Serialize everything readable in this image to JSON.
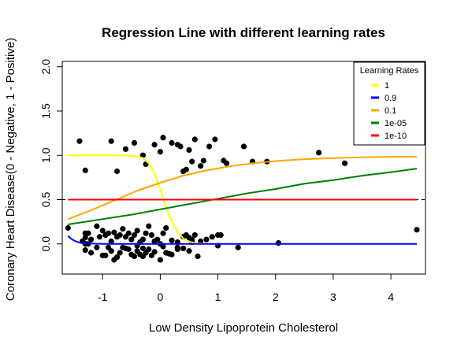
{
  "chart_data": {
    "type": "scatter",
    "title": "Regression Line with different learning rates",
    "xlabel": "Low Density Lipoprotein Cholesterol",
    "ylabel": "Coronary Heart Disease(0 - Negative, 1 - Positive)",
    "xlim": [
      -1.7,
      4.6
    ],
    "ylim": [
      -0.34,
      2.06
    ],
    "xticks": [
      -1,
      0,
      1,
      2,
      3,
      4
    ],
    "yticks": [
      0.0,
      0.5,
      1.0,
      1.5,
      2.0
    ],
    "xtick_labels": [
      "-1",
      "0",
      "1",
      "2",
      "3",
      "4"
    ],
    "ytick_labels": [
      "0.0",
      "0.5",
      "1.0",
      "1.5",
      "2.0"
    ],
    "reference_line": {
      "y": 0.5,
      "style": "dashed",
      "color": "#000000"
    },
    "legend": {
      "title": "Learning Rates",
      "position": "top-right",
      "entries": [
        {
          "label": "1",
          "color": "#ffff00"
        },
        {
          "label": "0.9",
          "color": "#0000ff"
        },
        {
          "label": "0.1",
          "color": "#ffa500"
        },
        {
          "label": "1e-05",
          "color": "#008000"
        },
        {
          "label": "1e-10",
          "color": "#ff0000"
        }
      ]
    },
    "series": [
      {
        "name": "1",
        "color": "#ffff00",
        "x": [
          -1.6,
          -1.4,
          -1.2,
          -1.0,
          -0.8,
          -0.6,
          -0.4,
          -0.3,
          -0.2,
          -0.1,
          0.0,
          0.1,
          0.2,
          0.3,
          0.4,
          0.5,
          0.6,
          0.8,
          1.0
        ],
        "y": [
          1.0,
          1.0,
          1.0,
          1.0,
          1.0,
          0.998,
          0.99,
          0.97,
          0.91,
          0.8,
          0.62,
          0.42,
          0.26,
          0.14,
          0.06,
          0.025,
          0.01,
          0.0,
          0.0
        ]
      },
      {
        "name": "0.9",
        "color": "#0000ff",
        "x": [
          -1.6,
          -1.55,
          -1.5,
          -1.45,
          -1.4,
          -1.3,
          -1.1,
          -0.9,
          0.0,
          1.0,
          2.0,
          3.0,
          4.45
        ],
        "y": [
          0.09,
          0.06,
          0.04,
          0.025,
          0.015,
          0.007,
          0.002,
          0.0,
          0.0,
          0.0,
          0.0,
          0.0,
          0.0
        ]
      },
      {
        "name": "0.1",
        "color": "#ffa500",
        "x": [
          -1.6,
          -1.2,
          -0.8,
          -0.4,
          0.0,
          0.4,
          0.8,
          1.2,
          1.6,
          2.0,
          2.4,
          2.8,
          3.2,
          3.6,
          4.0,
          4.45
        ],
        "y": [
          0.28,
          0.38,
          0.49,
          0.6,
          0.69,
          0.77,
          0.83,
          0.875,
          0.91,
          0.935,
          0.952,
          0.965,
          0.973,
          0.979,
          0.983,
          0.986
        ]
      },
      {
        "name": "1e-05",
        "color": "#008000",
        "x": [
          -1.6,
          -1.0,
          -0.5,
          0.0,
          0.5,
          1.0,
          1.5,
          2.0,
          2.5,
          3.0,
          3.5,
          4.0,
          4.45
        ],
        "y": [
          0.22,
          0.28,
          0.33,
          0.39,
          0.45,
          0.51,
          0.57,
          0.62,
          0.68,
          0.72,
          0.77,
          0.81,
          0.85
        ]
      },
      {
        "name": "1e-10",
        "color": "#ff0000",
        "x": [
          -1.6,
          4.45
        ],
        "y": [
          0.5,
          0.5
        ]
      }
    ],
    "points": {
      "color": "#000000",
      "x": [
        -1.6,
        -1.35,
        -1.3,
        -1.3,
        -1.2,
        -1.1,
        -1.05,
        -1.0,
        -0.95,
        -0.9,
        -0.85,
        -0.8,
        -0.75,
        -0.7,
        -0.65,
        -0.6,
        -0.55,
        -0.5,
        -0.45,
        -0.4,
        -0.35,
        -0.3,
        -0.25,
        -0.2,
        -0.15,
        -0.1,
        -0.05,
        0.0,
        0.05,
        0.1,
        0.2,
        0.3,
        0.4,
        0.45,
        0.5,
        0.55,
        0.6,
        0.7,
        0.8,
        0.9,
        1.0,
        1.05,
        -1.3,
        -1.25,
        -1.2,
        -1.0,
        -0.9,
        -0.85,
        -0.7,
        -0.65,
        -0.55,
        -0.5,
        -0.4,
        -0.3,
        -0.2,
        0.1,
        0.2,
        0.3,
        0.5,
        0.65,
        1.35,
        2.05,
        4.45,
        -1.25,
        -1.3,
        -1.1,
        -0.95,
        -0.8,
        -0.75,
        -0.6,
        -0.45,
        -0.4,
        -0.35,
        -0.3,
        -0.25,
        -0.15,
        -0.1,
        0.0,
        0.05,
        0.15,
        0.3,
        0.4,
        0.55,
        1.0,
        -1.4,
        -1.3,
        -0.85,
        -0.75,
        -0.6,
        -0.45,
        -0.3,
        -0.25,
        -0.1,
        0.0,
        0.05,
        0.2,
        0.3,
        0.35,
        0.4,
        0.45,
        0.5,
        0.55,
        0.6,
        0.7,
        0.75,
        0.85,
        0.95,
        1.1,
        1.15,
        1.45,
        1.6,
        1.85,
        2.75,
        3.2
      ],
      "y": [
        0.18,
        0.03,
        0.0,
        0.12,
        0.05,
        0.2,
        0.08,
        0.15,
        0.1,
        0.12,
        0.03,
        0.13,
        0.08,
        0.1,
        0.17,
        0.08,
        0.12,
        0.05,
        0.1,
        0.15,
        0.02,
        0.05,
        0.12,
        0.2,
        0.1,
        0.03,
        0.05,
        0.0,
        0.12,
        0.18,
        0.04,
        0.02,
        0.08,
        0.1,
        0.07,
        0.05,
        0.1,
        0.03,
        0.05,
        0.08,
        0.1,
        0.1,
        -0.07,
        0.0,
        -0.1,
        -0.13,
        -0.04,
        -0.08,
        -0.1,
        -0.04,
        -0.06,
        -0.12,
        -0.08,
        -0.14,
        -0.06,
        -0.1,
        -0.12,
        -0.04,
        -0.08,
        -0.14,
        -0.04,
        0.01,
        0.16,
        0.12,
        0.07,
        -0.04,
        -0.13,
        -0.18,
        -0.15,
        -0.05,
        -0.14,
        -0.02,
        -0.12,
        -0.05,
        -0.1,
        -0.13,
        -0.09,
        -0.18,
        -0.03,
        -0.11,
        -0.06,
        -0.05,
        0.02,
        -0.02,
        1.16,
        0.83,
        1.16,
        0.82,
        1.07,
        1.14,
        1.0,
        0.9,
        1.12,
        1.04,
        1.2,
        1.14,
        1.12,
        1.1,
        0.82,
        0.84,
        1.06,
        0.93,
        1.18,
        0.88,
        0.94,
        1.1,
        1.18,
        0.94,
        0.91,
        1.1,
        0.93,
        0.93,
        1.03,
        0.91
      ]
    }
  }
}
